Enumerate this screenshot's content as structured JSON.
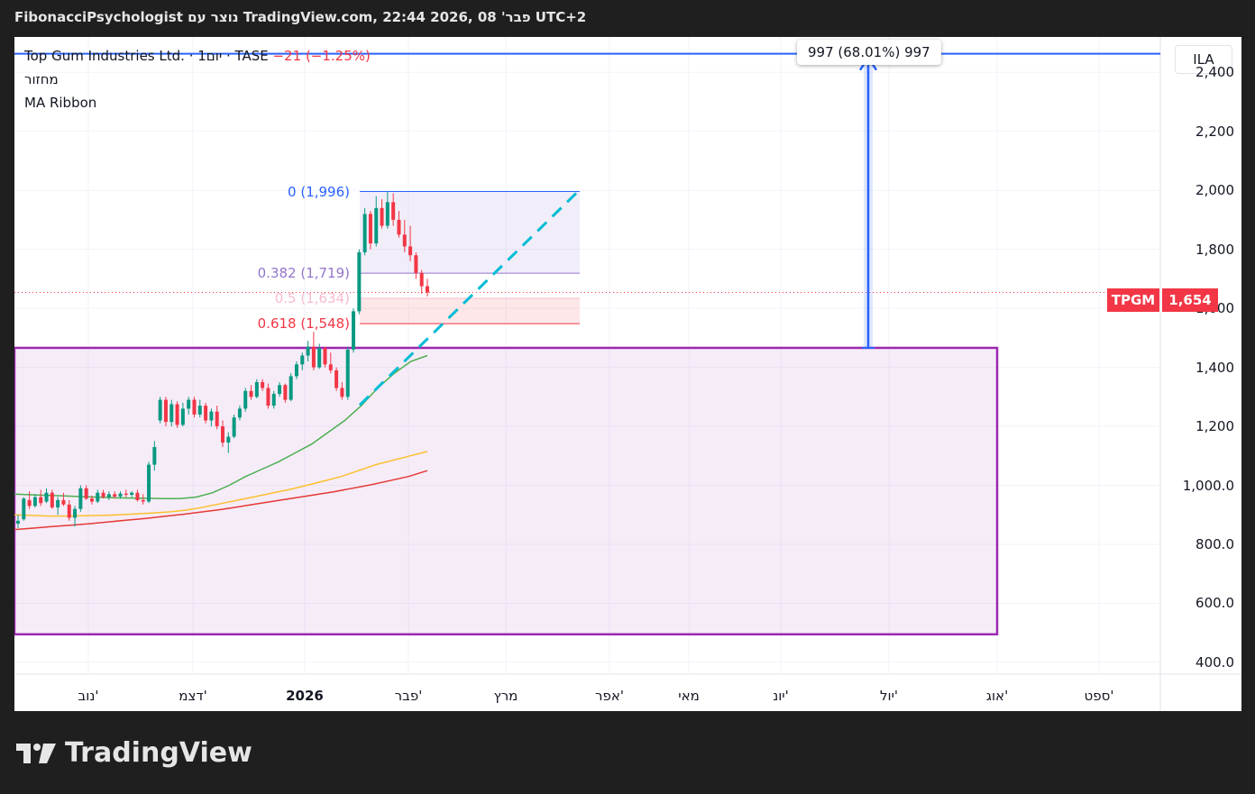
{
  "header": {
    "title": "FibonacciPsychologist נוצר עם TradingView.com, פבר' 08 ,2026 22:44 UTC+2"
  },
  "legend": {
    "symbol": "Top Gum Industries Ltd. · 1יום · TASE",
    "change": "−21 (−1.25%)"
  },
  "indicators": [
    "מחזור",
    "MA Ribbon"
  ],
  "currency": "ILA",
  "measure_label": "997 (68.01%) 997",
  "ticker_tag": "TPGM",
  "price_tag": "1,654",
  "fib": [
    {
      "label": "0 (1,996)",
      "color": "#2962ff"
    },
    {
      "label": "0.382 (1,719)",
      "color": "#9575cd"
    },
    {
      "label": "0.5 (1,634)",
      "color": "#f8bbd0"
    },
    {
      "label": "0.618 (1,548)",
      "color": "#f23645"
    }
  ],
  "logo": {
    "text": "TradingView"
  },
  "colors": {
    "up": "#089981",
    "down": "#f23645",
    "box": "#9c27b0",
    "measure": "#2962ff",
    "ma_fast": "#4caf50",
    "ma_mid": "#fbc02d",
    "ma_slow": "#e53935",
    "trend": "#00bcd4"
  },
  "chart_data": {
    "type": "candlestick",
    "y_axis": {
      "ticks": [
        "2,400",
        "2,200",
        "2,000",
        "1,800",
        "1,600",
        "1,400",
        "1,200",
        "1,000.0",
        "800.0",
        "600.0",
        "400.0"
      ],
      "ylim": [
        360,
        2520
      ]
    },
    "x_axis": {
      "ticks": [
        "נוב'",
        "דצמ'",
        "2026",
        "פבר'",
        "מרץ",
        "אפר'",
        "מאי",
        "יונ'",
        "יול'",
        "אוג'",
        "ספט'"
      ]
    },
    "last_price": 1654,
    "fib_levels": [
      1996,
      1719,
      1634,
      1548
    ],
    "price_range": {
      "from": 1466,
      "to": 2463
    },
    "box": {
      "top": 1466,
      "bottom": 495
    },
    "candles": [
      {
        "o": 870,
        "h": 900,
        "l": 855,
        "c": 880
      },
      {
        "o": 885,
        "h": 960,
        "l": 880,
        "c": 955
      },
      {
        "o": 950,
        "h": 980,
        "l": 920,
        "c": 930
      },
      {
        "o": 930,
        "h": 970,
        "l": 925,
        "c": 960
      },
      {
        "o": 960,
        "h": 985,
        "l": 930,
        "c": 940
      },
      {
        "o": 945,
        "h": 990,
        "l": 940,
        "c": 975
      },
      {
        "o": 975,
        "h": 985,
        "l": 920,
        "c": 925
      },
      {
        "o": 925,
        "h": 960,
        "l": 900,
        "c": 950
      },
      {
        "o": 950,
        "h": 975,
        "l": 930,
        "c": 935
      },
      {
        "o": 935,
        "h": 950,
        "l": 880,
        "c": 890
      },
      {
        "o": 890,
        "h": 930,
        "l": 860,
        "c": 920
      },
      {
        "o": 920,
        "h": 1000,
        "l": 910,
        "c": 990
      },
      {
        "o": 990,
        "h": 1000,
        "l": 950,
        "c": 955
      },
      {
        "o": 955,
        "h": 965,
        "l": 935,
        "c": 945
      },
      {
        "o": 945,
        "h": 985,
        "l": 940,
        "c": 975
      },
      {
        "o": 975,
        "h": 985,
        "l": 955,
        "c": 960
      },
      {
        "o": 960,
        "h": 980,
        "l": 950,
        "c": 970
      },
      {
        "o": 970,
        "h": 980,
        "l": 955,
        "c": 962
      },
      {
        "o": 962,
        "h": 980,
        "l": 955,
        "c": 972
      },
      {
        "o": 972,
        "h": 985,
        "l": 960,
        "c": 968
      },
      {
        "o": 968,
        "h": 980,
        "l": 960,
        "c": 975
      },
      {
        "o": 975,
        "h": 985,
        "l": 945,
        "c": 950
      },
      {
        "o": 950,
        "h": 970,
        "l": 935,
        "c": 945
      },
      {
        "o": 945,
        "h": 1080,
        "l": 940,
        "c": 1070
      },
      {
        "o": 1070,
        "h": 1150,
        "l": 1050,
        "c": 1130
      },
      {
        "o": 1220,
        "h": 1300,
        "l": 1210,
        "c": 1290
      },
      {
        "o": 1290,
        "h": 1300,
        "l": 1200,
        "c": 1215
      },
      {
        "o": 1215,
        "h": 1290,
        "l": 1200,
        "c": 1275
      },
      {
        "o": 1275,
        "h": 1285,
        "l": 1195,
        "c": 1205
      },
      {
        "o": 1205,
        "h": 1280,
        "l": 1200,
        "c": 1260
      },
      {
        "o": 1260,
        "h": 1300,
        "l": 1240,
        "c": 1290
      },
      {
        "o": 1290,
        "h": 1300,
        "l": 1230,
        "c": 1240
      },
      {
        "o": 1240,
        "h": 1290,
        "l": 1230,
        "c": 1270
      },
      {
        "o": 1270,
        "h": 1280,
        "l": 1210,
        "c": 1220
      },
      {
        "o": 1220,
        "h": 1260,
        "l": 1200,
        "c": 1250
      },
      {
        "o": 1250,
        "h": 1270,
        "l": 1190,
        "c": 1200
      },
      {
        "o": 1200,
        "h": 1220,
        "l": 1130,
        "c": 1145
      },
      {
        "o": 1145,
        "h": 1180,
        "l": 1110,
        "c": 1165
      },
      {
        "o": 1165,
        "h": 1240,
        "l": 1160,
        "c": 1230
      },
      {
        "o": 1230,
        "h": 1270,
        "l": 1220,
        "c": 1260
      },
      {
        "o": 1260,
        "h": 1330,
        "l": 1250,
        "c": 1320
      },
      {
        "o": 1320,
        "h": 1340,
        "l": 1290,
        "c": 1300
      },
      {
        "o": 1300,
        "h": 1360,
        "l": 1295,
        "c": 1350
      },
      {
        "o": 1350,
        "h": 1360,
        "l": 1320,
        "c": 1330
      },
      {
        "o": 1330,
        "h": 1345,
        "l": 1260,
        "c": 1270
      },
      {
        "o": 1270,
        "h": 1320,
        "l": 1260,
        "c": 1310
      },
      {
        "o": 1310,
        "h": 1350,
        "l": 1300,
        "c": 1340
      },
      {
        "o": 1340,
        "h": 1345,
        "l": 1280,
        "c": 1290
      },
      {
        "o": 1290,
        "h": 1380,
        "l": 1285,
        "c": 1370
      },
      {
        "o": 1370,
        "h": 1420,
        "l": 1360,
        "c": 1410
      },
      {
        "o": 1410,
        "h": 1450,
        "l": 1390,
        "c": 1440
      },
      {
        "o": 1440,
        "h": 1490,
        "l": 1420,
        "c": 1470
      },
      {
        "o": 1470,
        "h": 1520,
        "l": 1390,
        "c": 1400
      },
      {
        "o": 1400,
        "h": 1480,
        "l": 1395,
        "c": 1465
      },
      {
        "o": 1465,
        "h": 1470,
        "l": 1400,
        "c": 1410
      },
      {
        "o": 1410,
        "h": 1450,
        "l": 1380,
        "c": 1390
      },
      {
        "o": 1390,
        "h": 1400,
        "l": 1320,
        "c": 1330
      },
      {
        "o": 1330,
        "h": 1350,
        "l": 1290,
        "c": 1300
      },
      {
        "o": 1300,
        "h": 1470,
        "l": 1290,
        "c": 1460
      },
      {
        "o": 1460,
        "h": 1600,
        "l": 1450,
        "c": 1590
      },
      {
        "o": 1590,
        "h": 1800,
        "l": 1580,
        "c": 1790
      },
      {
        "o": 1790,
        "h": 1940,
        "l": 1780,
        "c": 1920
      },
      {
        "o": 1920,
        "h": 1930,
        "l": 1800,
        "c": 1820
      },
      {
        "o": 1820,
        "h": 1980,
        "l": 1810,
        "c": 1940
      },
      {
        "o": 1940,
        "h": 1970,
        "l": 1870,
        "c": 1880
      },
      {
        "o": 1880,
        "h": 1996,
        "l": 1870,
        "c": 1960
      },
      {
        "o": 1960,
        "h": 1990,
        "l": 1880,
        "c": 1900
      },
      {
        "o": 1900,
        "h": 1930,
        "l": 1840,
        "c": 1850
      },
      {
        "o": 1850,
        "h": 1900,
        "l": 1790,
        "c": 1810
      },
      {
        "o": 1810,
        "h": 1880,
        "l": 1760,
        "c": 1780
      },
      {
        "o": 1780,
        "h": 1790,
        "l": 1700,
        "c": 1720
      },
      {
        "o": 1720,
        "h": 1730,
        "l": 1650,
        "c": 1675
      },
      {
        "o": 1675,
        "h": 1700,
        "l": 1640,
        "c": 1654
      }
    ],
    "ma_fast": [
      970,
      968,
      966,
      964,
      962,
      960,
      958,
      957,
      956,
      955,
      955,
      960,
      975,
      1000,
      1030,
      1055,
      1080,
      1110,
      1140,
      1180,
      1220,
      1270,
      1330,
      1380,
      1420,
      1440
    ],
    "ma_mid": [
      900,
      898,
      896,
      896,
      897,
      898,
      900,
      903,
      906,
      910,
      916,
      926,
      938,
      950,
      962,
      974,
      986,
      1000,
      1015,
      1030,
      1050,
      1070,
      1085,
      1100,
      1115
    ],
    "ma_slow": [
      850,
      855,
      860,
      865,
      870,
      876,
      882,
      888,
      895,
      902,
      910,
      918,
      928,
      938,
      948,
      958,
      968,
      978,
      990,
      1002,
      1016,
      1030,
      1050
    ]
  }
}
